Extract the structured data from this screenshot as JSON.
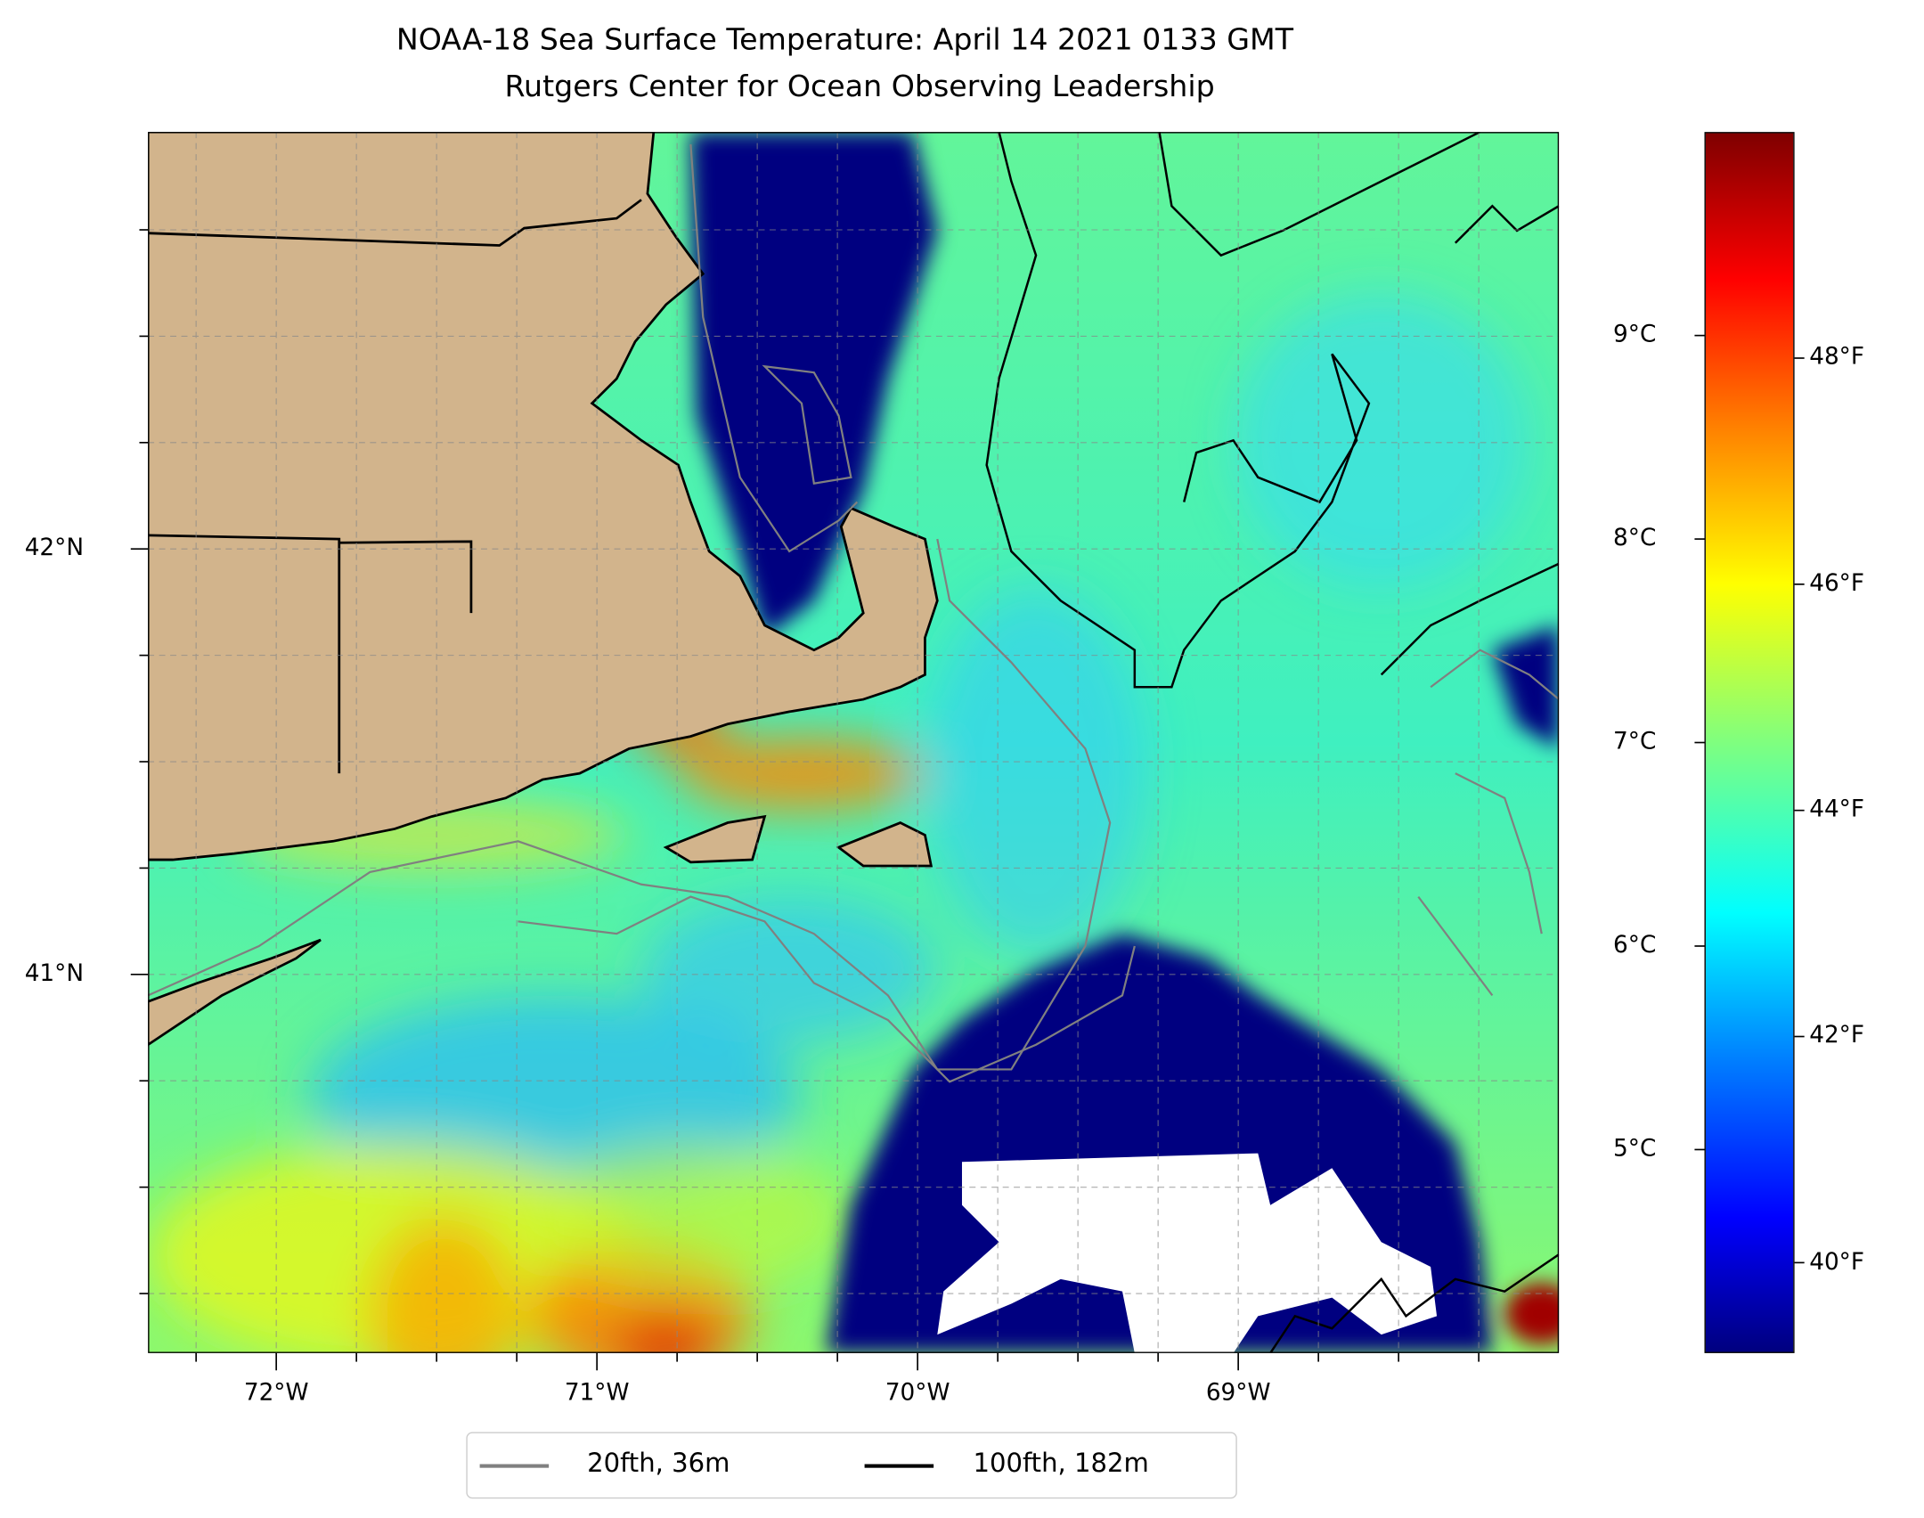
{
  "title": {
    "line1": "NOAA-18 Sea Surface Temperature: April 14 2021 0133 GMT",
    "line2": "Rutgers Center for Ocean Observing Leadership"
  },
  "chart_data": {
    "type": "heatmap",
    "title": "NOAA-18 Sea Surface Temperature: April 14 2021 0133 GMT",
    "subtitle": "Rutgers Center for Ocean Observing Leadership",
    "xlim": [
      -72.4,
      -68.0
    ],
    "ylim": [
      40.11,
      42.98
    ],
    "grid": true,
    "x_ticks": [
      -72,
      -71,
      -70,
      -69
    ],
    "x_tick_labels": [
      "72°W",
      "71°W",
      "70°W",
      "69°W"
    ],
    "y_ticks": [
      41,
      42
    ],
    "y_tick_labels": [
      "41°N",
      "42°N"
    ],
    "colorbar": {
      "colormap": "jet",
      "range_c": [
        4,
        10
      ],
      "ticks_c": [
        9,
        8,
        7,
        6,
        5
      ],
      "tick_labels_c": [
        "9°C",
        "8°C",
        "7°C",
        "6°C",
        "5°C"
      ],
      "ticks_f": [
        48,
        46,
        44,
        42,
        40
      ],
      "tick_labels_f": [
        "48°F",
        "46°F",
        "44°F",
        "42°F",
        "40°F"
      ]
    },
    "legend": {
      "placement": "bottom-center",
      "entries": [
        {
          "label": "20fth, 36m",
          "color": "#808080"
        },
        {
          "label": "100fth, 182m",
          "color": "#000000"
        }
      ]
    },
    "colors": {
      "land": "#d2b48c",
      "cloud": "#ffffff"
    }
  }
}
